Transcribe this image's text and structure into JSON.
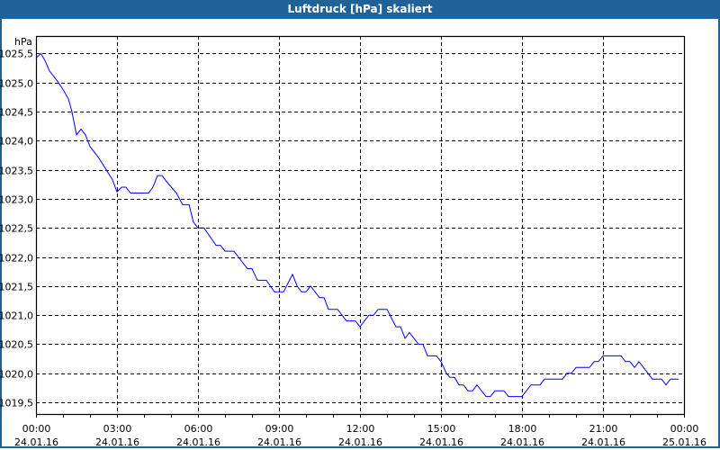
{
  "window": {
    "title": "Luftdruck [hPa] skaliert"
  },
  "chart_data": {
    "type": "line",
    "title": "Luftdruck [hPa] skaliert",
    "ylabel": "hPa",
    "xlabel": "",
    "xlim_hours": [
      0,
      24
    ],
    "ylim": [
      1019.3,
      1025.8
    ],
    "grid": true,
    "y_ticks": [
      1019.5,
      1020.0,
      1020.5,
      1021.0,
      1021.5,
      1022.0,
      1022.5,
      1023.0,
      1023.5,
      1024.0,
      1024.5,
      1025.0,
      1025.5
    ],
    "y_tick_labels": [
      "1019,5",
      "1020,0",
      "1020,5",
      "1021,0",
      "1021,5",
      "1022,0",
      "1022,5",
      "1023,0",
      "1023,5",
      "1024,0",
      "1024,5",
      "1025,0",
      "1025,5"
    ],
    "x_ticks": [
      {
        "hour": 0,
        "time": "00:00",
        "date": "24.01.16"
      },
      {
        "hour": 3,
        "time": "03:00",
        "date": "24.01.16"
      },
      {
        "hour": 6,
        "time": "06:00",
        "date": "24.01.16"
      },
      {
        "hour": 9,
        "time": "09:00",
        "date": "24.01.16"
      },
      {
        "hour": 12,
        "time": "12:00",
        "date": "24.01.16"
      },
      {
        "hour": 15,
        "time": "15:00",
        "date": "24.01.16"
      },
      {
        "hour": 18,
        "time": "18:00",
        "date": "24.01.16"
      },
      {
        "hour": 21,
        "time": "21:00",
        "date": "24.01.16"
      },
      {
        "hour": 24,
        "time": "00:00",
        "date": "25.01.16"
      }
    ],
    "series": [
      {
        "name": "Luftdruck",
        "color": "#0000ff",
        "x": [
          0,
          0.18,
          0.33,
          0.5,
          0.83,
          1.0,
          1.2,
          1.33,
          1.5,
          1.67,
          1.83,
          2.0,
          2.33,
          2.6,
          2.83,
          3.0,
          3.17,
          3.33,
          3.5,
          4.17,
          4.33,
          4.5,
          4.67,
          4.83,
          5.2,
          5.43,
          5.67,
          5.83,
          6.0,
          6.22,
          6.67,
          6.83,
          7.0,
          7.33,
          7.83,
          8.0,
          8.2,
          8.53,
          8.83,
          9.17,
          9.5,
          9.67,
          9.83,
          10.0,
          10.17,
          10.5,
          10.67,
          10.83,
          11.17,
          11.5,
          11.83,
          12.0,
          12.33,
          12.5,
          12.67,
          13.0,
          13.33,
          13.5,
          13.67,
          13.83,
          14.17,
          14.33,
          14.5,
          14.83,
          15.0,
          15.2,
          15.33,
          15.5,
          15.67,
          15.83,
          16.0,
          16.17,
          16.33,
          16.67,
          16.83,
          17.0,
          17.33,
          17.5,
          18.0,
          18.33,
          18.67,
          18.83,
          19.5,
          19.67,
          19.83,
          20.0,
          20.5,
          20.67,
          20.83,
          21.0,
          21.67,
          21.83,
          22.0,
          22.17,
          22.33,
          22.5,
          22.83,
          23.17,
          23.33,
          23.5,
          23.8
        ],
        "values": [
          1025.42,
          1025.5,
          1025.38,
          1025.2,
          1025.0,
          1024.88,
          1024.72,
          1024.5,
          1024.1,
          1024.2,
          1024.1,
          1023.9,
          1023.7,
          1023.5,
          1023.33,
          1023.12,
          1023.2,
          1023.2,
          1023.1,
          1023.1,
          1023.2,
          1023.4,
          1023.4,
          1023.3,
          1023.1,
          1022.9,
          1022.9,
          1022.6,
          1022.5,
          1022.5,
          1022.2,
          1022.2,
          1022.1,
          1022.1,
          1021.8,
          1021.8,
          1021.6,
          1021.6,
          1021.4,
          1021.4,
          1021.7,
          1021.5,
          1021.4,
          1021.4,
          1021.5,
          1021.3,
          1021.3,
          1021.1,
          1021.1,
          1020.9,
          1020.9,
          1020.8,
          1021.0,
          1021.0,
          1021.1,
          1021.1,
          1020.8,
          1020.8,
          1020.6,
          1020.7,
          1020.5,
          1020.5,
          1020.3,
          1020.3,
          1020.2,
          1020.0,
          1019.93,
          1019.93,
          1019.8,
          1019.8,
          1019.7,
          1019.7,
          1019.8,
          1019.6,
          1019.6,
          1019.7,
          1019.7,
          1019.6,
          1019.6,
          1019.8,
          1019.8,
          1019.9,
          1019.9,
          1020.0,
          1020.0,
          1020.1,
          1020.1,
          1020.2,
          1020.2,
          1020.3,
          1020.3,
          1020.2,
          1020.2,
          1020.1,
          1020.2,
          1020.1,
          1019.9,
          1019.9,
          1019.8,
          1019.9,
          1019.9
        ]
      }
    ]
  }
}
